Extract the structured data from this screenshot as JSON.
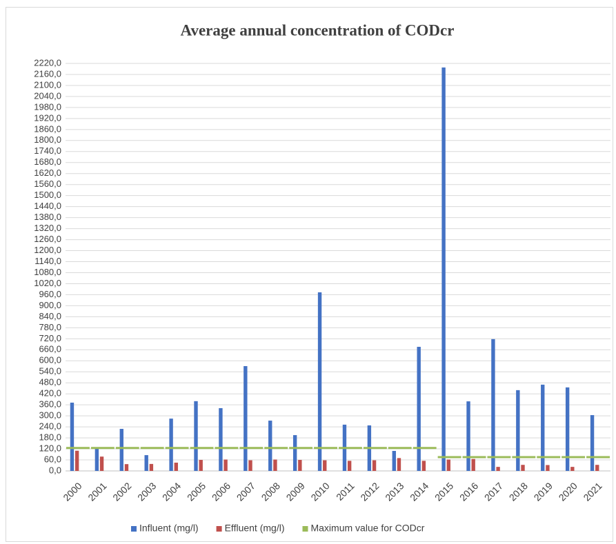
{
  "chart_data": {
    "type": "bar",
    "title": "Average annual concentration of CODcr",
    "categories": [
      "2000",
      "2001",
      "2002",
      "2003",
      "2004",
      "2005",
      "2006",
      "2007",
      "2008",
      "2009",
      "2010",
      "2011",
      "2012",
      "2013",
      "2014",
      "2015",
      "2016",
      "2017",
      "2018",
      "2019",
      "2020",
      "2021"
    ],
    "series": [
      {
        "name": "Influent (mg/l)",
        "color": "#4472c4",
        "values": [
          372,
          120,
          229,
          86,
          285,
          380,
          342,
          571,
          274,
          195,
          973,
          252,
          248,
          109,
          676,
          2198,
          379,
          718,
          440,
          470,
          455,
          304
        ]
      },
      {
        "name": "Effluent (mg/l)",
        "color": "#c0504d",
        "values": [
          110,
          78,
          37,
          38,
          45,
          60,
          62,
          58,
          62,
          60,
          58,
          55,
          58,
          70,
          55,
          62,
          65,
          22,
          33,
          32,
          22,
          33
        ]
      },
      {
        "name": "Maximum value for CODcr",
        "color": "#9bbb59",
        "type": "line",
        "values": [
          125,
          125,
          125,
          125,
          125,
          125,
          125,
          125,
          125,
          125,
          125,
          125,
          125,
          125,
          125,
          75,
          75,
          75,
          75,
          75,
          75,
          75
        ]
      }
    ],
    "ylim": [
      0,
      2220
    ],
    "yticks": [
      {
        "value": 0,
        "label": "0,0"
      },
      {
        "value": 60,
        "label": "60,0"
      },
      {
        "value": 120,
        "label": "120,0"
      },
      {
        "value": 180,
        "label": "180,0"
      },
      {
        "value": 240,
        "label": "240,0"
      },
      {
        "value": 300,
        "label": "300,0"
      },
      {
        "value": 360,
        "label": "360,0"
      },
      {
        "value": 420,
        "label": "420,0"
      },
      {
        "value": 480,
        "label": "480,0"
      },
      {
        "value": 540,
        "label": "540,0"
      },
      {
        "value": 600,
        "label": "600,0"
      },
      {
        "value": 660,
        "label": "660,0"
      },
      {
        "value": 720,
        "label": "720,0"
      },
      {
        "value": 780,
        "label": "780,0"
      },
      {
        "value": 840,
        "label": "840,0"
      },
      {
        "value": 900,
        "label": "900,0"
      },
      {
        "value": 960,
        "label": "960,0"
      },
      {
        "value": 1020,
        "label": "1020,0"
      },
      {
        "value": 1080,
        "label": "1080,0"
      },
      {
        "value": 1140,
        "label": "1140,0"
      },
      {
        "value": 1200,
        "label": "1200,0"
      },
      {
        "value": 1260,
        "label": "1260,0"
      },
      {
        "value": 1320,
        "label": "1320,0"
      },
      {
        "value": 1380,
        "label": "1380,0"
      },
      {
        "value": 1440,
        "label": "1440,0"
      },
      {
        "value": 1500,
        "label": "1500,0"
      },
      {
        "value": 1560,
        "label": "1560,0"
      },
      {
        "value": 1620,
        "label": "1620,0"
      },
      {
        "value": 1680,
        "label": "1680,0"
      },
      {
        "value": 1740,
        "label": "1740,0"
      },
      {
        "value": 1800,
        "label": "1800,0"
      },
      {
        "value": 1860,
        "label": "1860,0"
      },
      {
        "value": 1920,
        "label": "1920,0"
      },
      {
        "value": 1980,
        "label": "1980,0"
      },
      {
        "value": 2040,
        "label": "2040,0"
      },
      {
        "value": 2100,
        "label": "2100,0"
      },
      {
        "value": 2160,
        "label": "2160,0"
      },
      {
        "value": 2220,
        "label": "2220,0"
      }
    ],
    "grid": true,
    "legend": "bottom"
  }
}
